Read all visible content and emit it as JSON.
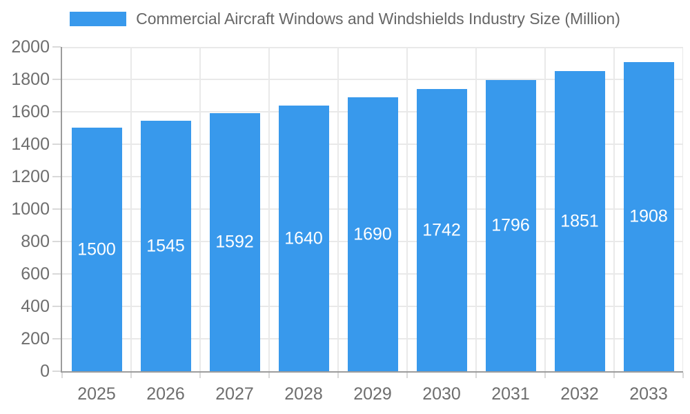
{
  "chart_data": {
    "type": "bar",
    "title": "Commercial Aircraft Windows and Windshields Industry Size (Million)",
    "categories": [
      "2025",
      "2026",
      "2027",
      "2028",
      "2029",
      "2030",
      "2031",
      "2032",
      "2033"
    ],
    "values": [
      1500,
      1545,
      1592,
      1640,
      1690,
      1742,
      1796,
      1851,
      1908
    ],
    "xlabel": "",
    "ylabel": "",
    "ylim": [
      0,
      2000
    ],
    "yticks": [
      0,
      200,
      400,
      600,
      800,
      1000,
      1200,
      1400,
      1600,
      1800,
      2000
    ],
    "grid": true,
    "legend_position": "top",
    "bar_color": "#3899ec",
    "bar_label_color": "#ffffff",
    "grid_color": "#e9e9e9",
    "axis_line_color": "#9c9c9c",
    "tick_mark_color": "#d9d9d9",
    "tick_label_color": "#6e6e6e",
    "legend_text_color": "#666666"
  }
}
